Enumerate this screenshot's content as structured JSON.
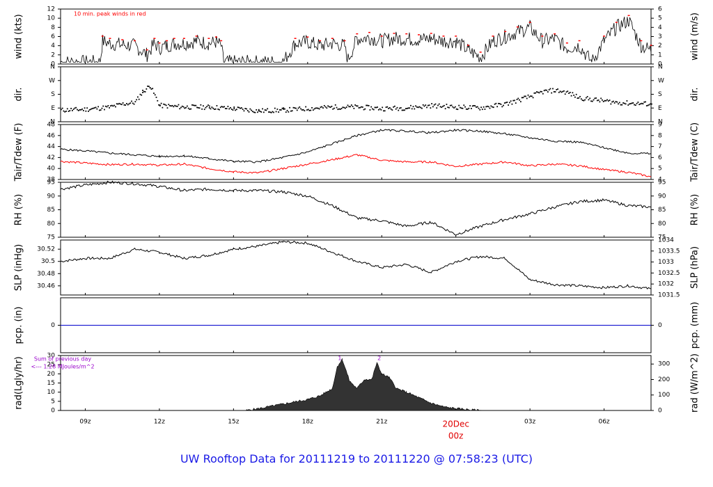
{
  "footer_title": "UW Rooftop Data for 20111219  to  20111220 @ 07:58:23  (UTC)",
  "colors": {
    "series_primary": "#000000",
    "series_dew": "#ff0000",
    "precip": "#0000cc",
    "annotation": "#9900cc",
    "date_label": "#e00000",
    "footer": "#1a1ae6"
  },
  "x_axis": {
    "ticks": [
      "09z",
      "12z",
      "15z",
      "18z",
      "21z",
      "00z",
      "03z",
      "06z"
    ],
    "tick_hours": [
      0,
      3,
      6,
      9,
      12,
      15,
      18,
      21
    ],
    "date_label": "20Dec",
    "date_label_at": "00z",
    "range_hours": [
      -1,
      22.9
    ]
  },
  "chart_data": [
    {
      "id": "wind",
      "type": "line",
      "ylabel_left": "wind (kts)",
      "ylabel_right": "wind (m/s)",
      "ylim": [
        0,
        12
      ],
      "yticks_left": [
        0,
        2,
        4,
        6,
        8,
        10,
        12
      ],
      "yticks_right": [
        0,
        1,
        2,
        3,
        4,
        5,
        6
      ],
      "annotation": "10 min. peak winds in red",
      "series": [
        {
          "x": [
            -1,
            0.6,
            0.7,
            1,
            1.5,
            2,
            2.5,
            2.8,
            3,
            3.3,
            3.6,
            4,
            4.5,
            5,
            5.3,
            5.5,
            5.6,
            6,
            7,
            8,
            8.5,
            9,
            9.5,
            10,
            10.5,
            10.6,
            11,
            11.5,
            12,
            12.5,
            13,
            13.5,
            14,
            14.5,
            15,
            15.5,
            16,
            16.5,
            17,
            17.5,
            18,
            18.5,
            19,
            19.5,
            20,
            20.5,
            21,
            21.5,
            22,
            22.5,
            22.9
          ],
          "values": [
            0.4,
            0.4,
            5,
            4.5,
            4.2,
            4,
            2,
            4.5,
            3.5,
            4,
            4.5,
            4.5,
            5,
            4.5,
            4.8,
            4,
            0.4,
            0.4,
            0.4,
            0.4,
            4.5,
            4.8,
            4,
            4.5,
            4,
            0.5,
            5.5,
            5.8,
            5,
            5.6,
            5.5,
            5.3,
            5.6,
            5,
            5,
            3,
            1.5,
            5,
            6,
            7,
            8,
            5,
            5.5,
            3.5,
            4,
            0.4,
            5,
            8,
            9.5,
            4,
            3
          ]
        }
      ]
    },
    {
      "id": "dir",
      "type": "scatter",
      "ylabel_left": "dir.",
      "ylabel_right": "dir.",
      "yticks_left": [
        "N",
        "E",
        "S",
        "W",
        "N"
      ],
      "yticks_right": [
        "N",
        "E",
        "S",
        "W",
        "N"
      ],
      "ylim": [
        0,
        360
      ],
      "series": [
        {
          "x": [
            -1,
            0,
            1,
            1.5,
            2,
            2.3,
            2.6,
            3,
            4,
            5,
            6,
            7,
            8,
            9,
            10,
            11,
            12,
            13,
            14,
            15,
            16,
            17,
            17.5,
            18,
            18.5,
            19,
            19.5,
            20,
            20.5,
            21,
            21.5,
            22,
            22.9
          ],
          "values": [
            80,
            85,
            100,
            120,
            130,
            200,
            240,
            110,
            100,
            100,
            90,
            75,
            80,
            90,
            100,
            100,
            90,
            95,
            110,
            100,
            95,
            120,
            145,
            170,
            200,
            210,
            195,
            160,
            150,
            140,
            130,
            125,
            120
          ]
        }
      ]
    },
    {
      "id": "temp",
      "type": "line",
      "ylabel_left": "Tair/Tdew (F)",
      "ylabel_right": "Tair/Tdew (C)",
      "ylim": [
        38,
        48
      ],
      "yticks_left": [
        38,
        40,
        42,
        44,
        46,
        48
      ],
      "yticks_right": [
        4,
        5,
        6,
        7,
        8,
        9
      ],
      "series": [
        {
          "name": "Tair",
          "x": [
            -1,
            0,
            1,
            2,
            3,
            4,
            5,
            6,
            7,
            8,
            9,
            10,
            11,
            12,
            13,
            14,
            15,
            16,
            17,
            18,
            19,
            20,
            21,
            22,
            22.9
          ],
          "values": [
            43.5,
            43.2,
            42.8,
            42.5,
            42.2,
            42.3,
            41.8,
            41.3,
            41.2,
            42,
            43,
            44.5,
            46,
            47,
            46.8,
            46.5,
            47,
            46.8,
            46.3,
            45.6,
            45,
            44.8,
            43.8,
            42.8,
            42.7
          ]
        },
        {
          "name": "Tdew",
          "x": [
            -1,
            0,
            1,
            2,
            3,
            4,
            5,
            6,
            7,
            8,
            9,
            10,
            11,
            12,
            13,
            14,
            15,
            16,
            17,
            18,
            19,
            20,
            21,
            22,
            22.9
          ],
          "values": [
            41.3,
            41,
            40.7,
            40.8,
            40.6,
            40.8,
            40,
            39.4,
            39.2,
            40,
            40.8,
            41.6,
            42.5,
            41.5,
            41.2,
            41.2,
            40.4,
            40.8,
            41.2,
            40.5,
            40.8,
            40.5,
            39.8,
            39.3,
            38.5
          ]
        }
      ]
    },
    {
      "id": "rh",
      "type": "line",
      "ylabel_left": "RH (%)",
      "ylabel_right": "RH (%)",
      "ylim": [
        75,
        95
      ],
      "yticks_left": [
        75,
        80,
        85,
        90,
        95
      ],
      "yticks_right": [
        75,
        80,
        85,
        90,
        95
      ],
      "series": [
        {
          "x": [
            -1,
            0,
            1,
            2,
            3,
            4,
            5,
            6,
            7,
            8,
            9,
            10,
            11,
            12,
            13,
            14,
            15,
            16,
            17,
            18,
            19,
            20,
            21,
            22,
            22.9
          ],
          "values": [
            92.5,
            94,
            95,
            94.5,
            93.5,
            92,
            92.5,
            92,
            92,
            91.5,
            90,
            86.5,
            82,
            81,
            79,
            80.5,
            76,
            79,
            81.5,
            83.5,
            86,
            88,
            88.5,
            86.5,
            86
          ]
        }
      ]
    },
    {
      "id": "slp",
      "type": "line",
      "ylabel_left": "SLP (inHg)",
      "ylabel_right": "SLP (hPa)",
      "ylim": [
        30.445,
        30.535
      ],
      "yticks_left": [
        30.46,
        30.48,
        30.5,
        30.52
      ],
      "yticks_right": [
        1031.5,
        1032,
        1032.5,
        1033,
        1033.5,
        1034
      ],
      "series": [
        {
          "x": [
            -1,
            0,
            1,
            2,
            3,
            4,
            5,
            6,
            7,
            8,
            9,
            10,
            11,
            12,
            13,
            14,
            15,
            16,
            17,
            18,
            19,
            20,
            21,
            22,
            22.9
          ],
          "values": [
            30.5,
            30.505,
            30.505,
            30.52,
            30.515,
            30.505,
            30.51,
            30.52,
            30.525,
            30.532,
            30.53,
            30.515,
            30.5,
            30.49,
            30.495,
            30.482,
            30.5,
            30.508,
            30.505,
            30.47,
            30.462,
            30.46,
            30.457,
            30.46,
            30.455
          ]
        }
      ]
    },
    {
      "id": "pcp",
      "type": "line",
      "ylabel_left": "pcp. (in)",
      "ylabel_right": "pcp. (mm)",
      "ylim": [
        -1,
        1
      ],
      "yticks_left": [
        0
      ],
      "yticks_right": [
        0
      ],
      "series": [
        {
          "x": [
            -1,
            22.9
          ],
          "values": [
            0,
            0
          ]
        }
      ]
    },
    {
      "id": "rad",
      "type": "area",
      "ylabel_left": "rad(Lgly/hr)",
      "ylabel_right": "rad (W/m^2)",
      "ylim": [
        0,
        30
      ],
      "yticks_left": [
        0,
        5,
        10,
        15,
        20,
        25,
        30
      ],
      "yticks_right": [
        0,
        100,
        200,
        300
      ],
      "annotation_lines": [
        "Sum of previous day",
        "<--- 1.28 MJoules/m^2"
      ],
      "peak_labels": [
        "1",
        "2"
      ],
      "peak_at_hours": [
        10.3,
        11.9
      ],
      "series": [
        {
          "x": [
            6.5,
            7,
            8,
            9,
            9.5,
            10,
            10.2,
            10.4,
            10.7,
            11,
            11.3,
            11.6,
            11.8,
            12,
            12.3,
            12.6,
            13,
            13.5,
            14,
            14.5,
            15,
            16
          ],
          "values": [
            0,
            1,
            3.5,
            6,
            8,
            12,
            24,
            28,
            16,
            12,
            17,
            17,
            26,
            20,
            18,
            12,
            10,
            7,
            4,
            2,
            1,
            0
          ]
        }
      ]
    }
  ]
}
